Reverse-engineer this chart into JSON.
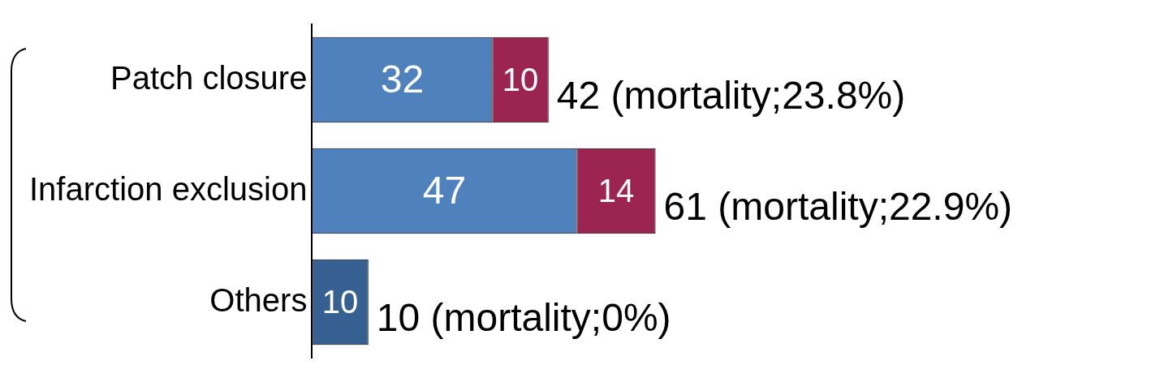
{
  "chart_data": {
    "type": "bar",
    "orientation": "horizontal",
    "stacked": true,
    "categories": [
      "Patch closure",
      "Infarction exclusion",
      "Others"
    ],
    "series": [
      {
        "colors": [
          "#4f81bd",
          "#4f81bd",
          "#376092"
        ],
        "values": [
          32,
          47,
          10
        ]
      },
      {
        "color": "#9b2451",
        "values": [
          10,
          14,
          null
        ]
      }
    ],
    "data_labels": true,
    "totals": [
      "42 (mortality;23.8%)",
      "61 (mortality;22.9%)",
      "10 (mortality;0%)"
    ],
    "tick_labels": "y",
    "grid": false,
    "legend": false
  }
}
